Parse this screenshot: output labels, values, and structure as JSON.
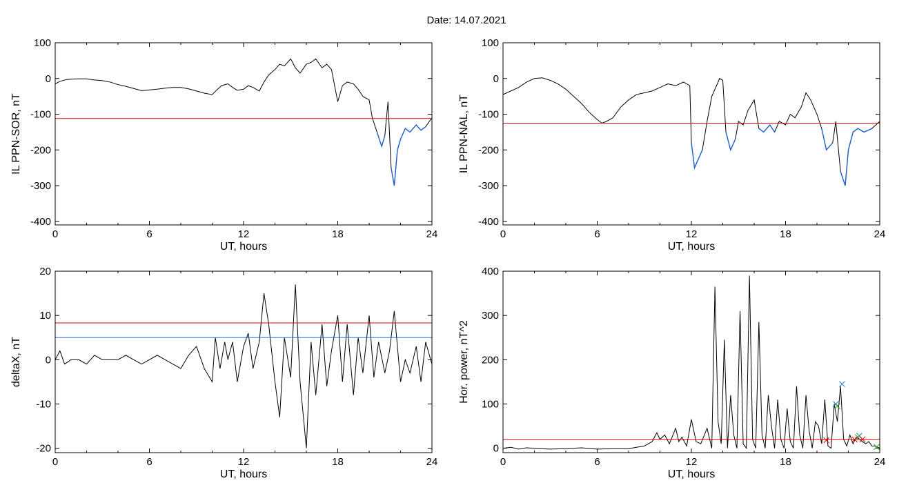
{
  "figure_title": "Date:  14.07.2021",
  "colors": {
    "data_line": "#000000",
    "threshold_red": "#e00000",
    "threshold_blue": "#1f77d0",
    "below_threshold": "#1f5fd0",
    "marker_blue": "#1f77d0",
    "marker_green": "#2ca02c",
    "marker_red": "#e00000"
  },
  "chart_data": [
    {
      "type": "line",
      "panel": "top-left",
      "title": "",
      "xlabel": "UT, hours",
      "ylabel": "IL PPN-SOR, nT",
      "xlim": [
        0,
        24
      ],
      "ylim": [
        -410,
        100
      ],
      "xticks": [
        "0",
        "6",
        "12",
        "18",
        "24"
      ],
      "yticks": [
        "100",
        "0",
        "-100",
        "-200",
        "-300",
        "-400"
      ],
      "threshold_lines": [
        {
          "y": -112,
          "color": "red"
        }
      ],
      "below_threshold_color": "blue",
      "series": [
        {
          "x": [
            0,
            0.3,
            0.7,
            1,
            1.5,
            2,
            2.5,
            3,
            3.5,
            4,
            4.5,
            5,
            5.5,
            6,
            6.5,
            7,
            7.5,
            8,
            8.5,
            9,
            9.5,
            10,
            10.3,
            10.6,
            11,
            11.3,
            11.6,
            12,
            12.3,
            12.6,
            13,
            13.3,
            13.6,
            14,
            14.3,
            14.6,
            15,
            15.3,
            15.6,
            16,
            16.3,
            16.6,
            17,
            17.3,
            17.6,
            18,
            18.3,
            18.6,
            19,
            19.3,
            19.6,
            20,
            20.2,
            20.5,
            20.8,
            21,
            21.2,
            21.4,
            21.6,
            21.8,
            22,
            22.3,
            22.6,
            23,
            23.3,
            23.6,
            24
          ],
          "values": [
            -15,
            -8,
            -3,
            -2,
            -1,
            -1,
            -4,
            -6,
            -10,
            -17,
            -22,
            -28,
            -34,
            -32,
            -30,
            -27,
            -25,
            -25,
            -29,
            -35,
            -41,
            -45,
            -32,
            -20,
            -15,
            -25,
            -33,
            -30,
            -20,
            -25,
            -35,
            -10,
            10,
            25,
            40,
            35,
            55,
            30,
            15,
            40,
            45,
            55,
            30,
            40,
            25,
            -65,
            -20,
            -10,
            -15,
            -30,
            -50,
            -60,
            -110,
            -150,
            -190,
            -160,
            -65,
            -250,
            -300,
            -200,
            -170,
            -140,
            -150,
            -130,
            -145,
            -135,
            -110
          ]
        }
      ]
    },
    {
      "type": "line",
      "panel": "top-right",
      "title": "",
      "xlabel": "UT, hours",
      "ylabel": "IL PPN-NAL, nT",
      "xlim": [
        0,
        24
      ],
      "ylim": [
        -410,
        100
      ],
      "xticks": [
        "0",
        "6",
        "12",
        "18",
        "24"
      ],
      "yticks": [
        "100",
        "0",
        "-100",
        "-200",
        "-300",
        "-400"
      ],
      "threshold_lines": [
        {
          "y": -125,
          "color": "red"
        }
      ],
      "below_threshold_color": "blue",
      "series": [
        {
          "x": [
            0,
            0.5,
            1,
            1.5,
            2,
            2.5,
            3,
            3.5,
            4,
            4.5,
            5,
            5.5,
            6,
            6.3,
            6.6,
            7,
            7.5,
            8,
            8.5,
            9,
            9.5,
            10,
            10.5,
            11,
            11.5,
            11.9,
            12,
            12.2,
            12.4,
            12.7,
            13,
            13.3,
            13.6,
            13.8,
            14,
            14.2,
            14.5,
            14.8,
            15,
            15.3,
            15.6,
            16,
            16.3,
            16.6,
            17,
            17.3,
            17.6,
            18,
            18.3,
            18.6,
            19,
            19.3,
            19.6,
            20,
            20.3,
            20.6,
            21,
            21.2,
            21.5,
            21.8,
            22,
            22.3,
            22.6,
            23,
            23.5,
            24
          ],
          "values": [
            -45,
            -35,
            -25,
            -10,
            0,
            2,
            -5,
            -15,
            -30,
            -50,
            -70,
            -95,
            -115,
            -125,
            -120,
            -110,
            -80,
            -60,
            -45,
            -40,
            -35,
            -25,
            -15,
            -20,
            -10,
            -20,
            -180,
            -250,
            -230,
            -200,
            -120,
            -50,
            -20,
            0,
            -5,
            -150,
            -200,
            -170,
            -120,
            -130,
            -90,
            -60,
            -140,
            -150,
            -130,
            -150,
            -120,
            -130,
            -100,
            -110,
            -80,
            -40,
            -60,
            -100,
            -140,
            -200,
            -180,
            -120,
            -260,
            -300,
            -200,
            -150,
            -140,
            -150,
            -140,
            -120
          ]
        }
      ]
    },
    {
      "type": "line",
      "panel": "bottom-left",
      "title": "",
      "xlabel": "UT, hours",
      "ylabel": "deltaX, nT",
      "xlim": [
        0,
        24
      ],
      "ylim": [
        -21,
        20
      ],
      "xticks": [
        "0",
        "6",
        "12",
        "18",
        "24"
      ],
      "yticks": [
        "20",
        "10",
        "0",
        "-10",
        "-20"
      ],
      "threshold_lines": [
        {
          "y": 8.3,
          "color": "red"
        },
        {
          "y": 5.0,
          "color": "blue"
        }
      ],
      "series": [
        {
          "x": [
            0,
            0.3,
            0.6,
            1,
            1.5,
            2,
            2.5,
            3,
            3.5,
            4,
            4.5,
            5,
            5.5,
            6,
            6.5,
            7,
            7.5,
            8,
            8.5,
            9,
            9.5,
            10,
            10.2,
            10.5,
            10.8,
            11,
            11.3,
            11.6,
            12,
            12.3,
            12.6,
            13,
            13.3,
            13.6,
            14,
            14.3,
            14.6,
            15,
            15.3,
            15.6,
            16,
            16.3,
            16.6,
            17,
            17.3,
            17.6,
            18,
            18.3,
            18.6,
            19,
            19.3,
            19.6,
            20,
            20.3,
            20.6,
            21,
            21.3,
            21.6,
            22,
            22.3,
            22.6,
            23,
            23.3,
            23.6,
            24
          ],
          "values": [
            0,
            2,
            -1,
            0,
            0,
            -1,
            1,
            0,
            0,
            0,
            1,
            0,
            -1,
            0,
            1,
            0,
            -1,
            -2,
            1,
            3,
            -2,
            -5,
            5,
            -2,
            4,
            0,
            4,
            -5,
            3,
            6,
            -2,
            4,
            15,
            8,
            -5,
            -13,
            5,
            -4,
            17,
            -5,
            -20,
            4,
            -8,
            8,
            -6,
            2,
            10,
            -5,
            8,
            -8,
            5,
            -3,
            10,
            -4,
            4,
            -3,
            2,
            11,
            -5,
            0,
            -3,
            3,
            -5,
            4,
            -1
          ]
        }
      ]
    },
    {
      "type": "line",
      "panel": "bottom-right",
      "title": "",
      "xlabel": "UT, hours",
      "ylabel": "Hor. power, nT^2",
      "xlim": [
        0,
        24
      ],
      "ylim": [
        -10,
        400
      ],
      "xticks": [
        "0",
        "6",
        "12",
        "18",
        "24"
      ],
      "yticks": [
        "400",
        "300",
        "200",
        "100",
        "0"
      ],
      "threshold_lines": [
        {
          "y": 20,
          "color": "red"
        }
      ],
      "markers": [
        {
          "x": 21.2,
          "y": 100,
          "symbol": "x",
          "color": "blue"
        },
        {
          "x": 21.6,
          "y": 145,
          "symbol": "x",
          "color": "blue"
        },
        {
          "x": 22.7,
          "y": 28,
          "symbol": "x",
          "color": "blue"
        },
        {
          "x": 21.3,
          "y": 95,
          "symbol": "x",
          "color": "green"
        },
        {
          "x": 22.6,
          "y": 25,
          "symbol": "x",
          "color": "green"
        },
        {
          "x": 23.8,
          "y": 3,
          "symbol": "x",
          "color": "green"
        },
        {
          "x": 20.6,
          "y": 18,
          "symbol": "x",
          "color": "red"
        },
        {
          "x": 22.4,
          "y": 20,
          "symbol": "x",
          "color": "red"
        },
        {
          "x": 22.9,
          "y": 20,
          "symbol": "x",
          "color": "red"
        }
      ],
      "series": [
        {
          "x": [
            0,
            0.5,
            1,
            1.5,
            2,
            3,
            4,
            5,
            6,
            7,
            8,
            8.5,
            9,
            9.5,
            9.8,
            10,
            10.3,
            10.6,
            11,
            11.2,
            11.4,
            11.7,
            12,
            12.3,
            12.6,
            13,
            13.3,
            13.5,
            13.7,
            13.9,
            14.1,
            14.3,
            14.5,
            14.7,
            14.9,
            15.1,
            15.3,
            15.5,
            15.7,
            15.9,
            16.1,
            16.3,
            16.5,
            16.7,
            16.9,
            17.1,
            17.3,
            17.5,
            17.7,
            17.9,
            18.1,
            18.3,
            18.5,
            18.7,
            18.9,
            19.1,
            19.3,
            19.5,
            19.7,
            19.9,
            20.1,
            20.3,
            20.5,
            20.7,
            20.9,
            21.1,
            21.3,
            21.5,
            21.7,
            21.9,
            22.1,
            22.3,
            22.5,
            22.7,
            22.9,
            23.1,
            23.3,
            23.5,
            23.7,
            24
          ],
          "values": [
            0,
            2,
            -2,
            1,
            0,
            -2,
            -1,
            1,
            -2,
            -1,
            -1,
            2,
            5,
            15,
            35,
            20,
            30,
            10,
            45,
            15,
            25,
            5,
            65,
            15,
            10,
            45,
            0,
            365,
            60,
            10,
            245,
            0,
            120,
            30,
            0,
            310,
            10,
            0,
            390,
            20,
            0,
            285,
            30,
            0,
            120,
            50,
            0,
            110,
            20,
            0,
            90,
            15,
            0,
            140,
            30,
            0,
            120,
            40,
            0,
            60,
            50,
            10,
            110,
            5,
            0,
            100,
            60,
            140,
            20,
            5,
            30,
            10,
            25,
            20,
            15,
            10,
            15,
            5,
            5,
            0
          ]
        }
      ]
    }
  ]
}
